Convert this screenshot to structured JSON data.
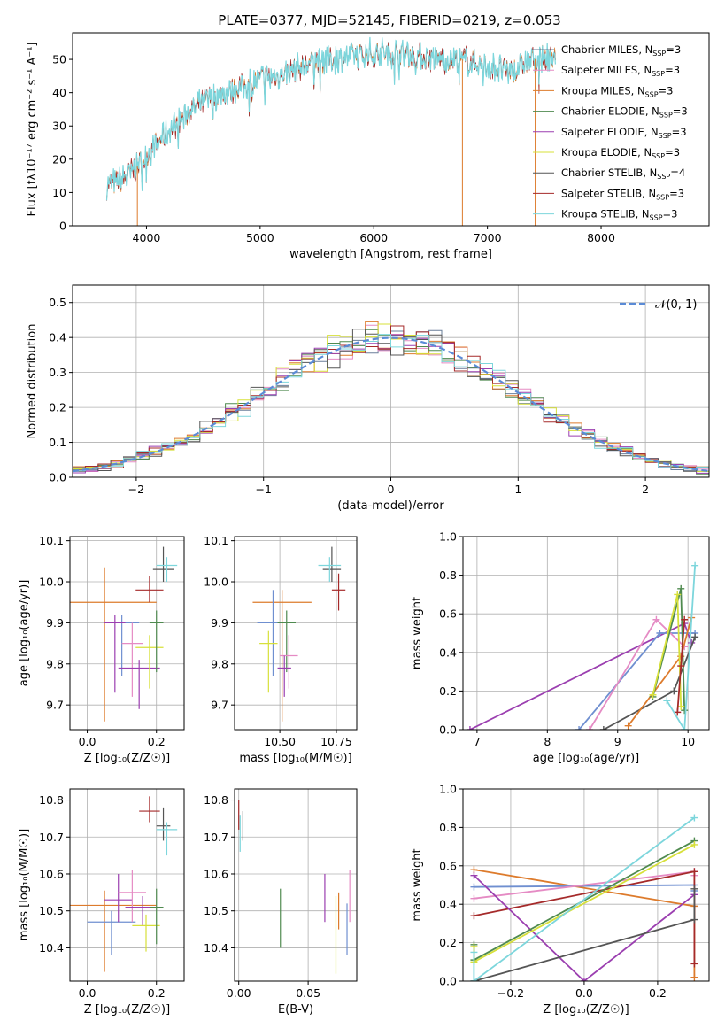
{
  "figure": {
    "title": "PLATE=0377, MJD=52145, FIBERID=0219, z=0.053"
  },
  "colors": {
    "chabrier_miles": "#6a7f9a",
    "salpeter_miles": "#e58bc4",
    "kroupa_miles": "#dd7b2c",
    "chabrier_elodie": "#4f8a4f",
    "salpeter_elodie": "#9b3fb0",
    "kroupa_elodie": "#d7e03a",
    "chabrier_stelib": "#555555",
    "salpeter_stelib": "#a52a2a",
    "kroupa_stelib": "#7dd6dc",
    "blue_line": "#6f8fd0",
    "normal_dash": "#5b8bd6"
  },
  "chart_data": [
    {
      "id": "spectrum",
      "type": "line",
      "xlabel": "wavelength [Angstrom, rest frame]",
      "ylabel": "Flux [fλ10⁻¹⁷ erg cm⁻² s⁻¹ A⁻¹]",
      "xlim": [
        3350,
        8950
      ],
      "ylim": [
        0,
        58
      ],
      "xticks": [
        "4000",
        "5000",
        "6000",
        "7000",
        "8000"
      ],
      "yticks": [
        "0",
        "10",
        "20",
        "30",
        "40",
        "50"
      ],
      "grid": false,
      "legend_placement": "top-right",
      "legend": [
        "Chabrier MILES, N_SSP=3",
        "Salpeter MILES, N_SSP=3",
        "Kroupa MILES, N_SSP=3",
        "Chabrier ELODIE, N_SSP=3",
        "Salpeter ELODIE, N_SSP=3",
        "Kroupa ELODIE, N_SSP=3",
        "Chabrier STELIB, N_SSP=4",
        "Salpeter STELIB, N_SSP=3",
        "Kroupa STELIB, N_SSP=3"
      ],
      "continuum": [
        [
          3650,
          12
        ],
        [
          3800,
          14
        ],
        [
          3950,
          19
        ],
        [
          4100,
          25
        ],
        [
          4250,
          30
        ],
        [
          4400,
          35
        ],
        [
          4550,
          38
        ],
        [
          4700,
          40
        ],
        [
          4850,
          42
        ],
        [
          5000,
          44
        ],
        [
          5150,
          45
        ],
        [
          5300,
          47
        ],
        [
          5450,
          49
        ],
        [
          5600,
          50
        ],
        [
          5800,
          51
        ],
        [
          6000,
          52
        ],
        [
          6200,
          52
        ],
        [
          6400,
          51
        ],
        [
          6600,
          50
        ],
        [
          6800,
          50
        ],
        [
          7000,
          48
        ],
        [
          7200,
          46
        ],
        [
          7400,
          50
        ],
        [
          7600,
          51
        ]
      ],
      "drops": [
        [
          3920,
          0
        ],
        [
          6780,
          0
        ],
        [
          7420,
          0
        ]
      ]
    },
    {
      "id": "residuals",
      "type": "area",
      "xlabel": "(data-model)/error",
      "ylabel": "Normed distribution",
      "xlim": [
        -2.5,
        2.5
      ],
      "ylim": [
        0,
        0.55
      ],
      "xticks": [
        "−2",
        "−1",
        "0",
        "1",
        "2"
      ],
      "yticks": [
        "0.0",
        "0.1",
        "0.2",
        "0.3",
        "0.4",
        "0.5"
      ],
      "grid": true,
      "legend_placement": "top-right",
      "legend": [
        "𝒩(0, 1)"
      ],
      "bin_width": 0.1
    },
    {
      "id": "age_vs_z",
      "type": "scatter",
      "xlabel": "Z [log₁₀(Z/Z☉)]",
      "ylabel": "age  [log₁₀(age/yr)]",
      "xlim": [
        -0.05,
        0.28
      ],
      "ylim": [
        9.64,
        10.11
      ],
      "xticks": [
        "0.0",
        "0.2"
      ],
      "yticks": [
        "9.7",
        "9.8",
        "9.9",
        "10.0",
        "10.1"
      ],
      "grid": true,
      "points": [
        {
          "x": 0.05,
          "y": 9.95,
          "dx": 0.15,
          "dy": 0.04,
          "dyu": 0.085,
          "dyd": 0.29,
          "c": "kroupa_miles"
        },
        {
          "x": 0.1,
          "y": 9.9,
          "dx": 0.05,
          "dyu": 0.02,
          "dyd": 0.13,
          "c": "blue_line"
        },
        {
          "x": 0.08,
          "y": 9.9,
          "dx": 0.03,
          "dyu": 0.02,
          "dyd": 0.17,
          "c": "salpeter_elodie"
        },
        {
          "x": 0.13,
          "y": 9.85,
          "dx": 0.03,
          "dyu": 0.05,
          "dyd": 0.13,
          "c": "salpeter_miles"
        },
        {
          "x": 0.15,
          "y": 9.79,
          "dx": 0.06,
          "dyu": 0.02,
          "dyd": 0.1,
          "c": "salpeter_elodie"
        },
        {
          "x": 0.18,
          "y": 9.84,
          "dx": 0.04,
          "dyu": 0.03,
          "dyd": 0.1,
          "c": "kroupa_elodie"
        },
        {
          "x": 0.2,
          "y": 9.9,
          "dx": 0.02,
          "dyu": 0.03,
          "dyd": 0.12,
          "c": "chabrier_elodie"
        },
        {
          "x": 0.18,
          "y": 9.98,
          "dx": 0.04,
          "dyu": 0.035,
          "dyd": 0.03,
          "c": "salpeter_stelib"
        },
        {
          "x": 0.22,
          "y": 10.03,
          "dx": 0.03,
          "dyu": 0.055,
          "dyd": 0.03,
          "c": "chabrier_stelib"
        },
        {
          "x": 0.23,
          "y": 10.04,
          "dx": 0.03,
          "dyu": 0.02,
          "dyd": 0.04,
          "c": "kroupa_stelib"
        }
      ]
    },
    {
      "id": "age_vs_mass",
      "type": "scatter",
      "xlabel": "mass [log₁₀(M/M☉)]",
      "ylabel": "",
      "xlim": [
        10.3,
        10.84
      ],
      "ylim": [
        9.64,
        10.11
      ],
      "xticks": [
        "10.50",
        "10.75"
      ],
      "yticks": [
        "9.7",
        "9.8",
        "9.9",
        "10.0",
        "10.1"
      ],
      "grid": true,
      "points": [
        {
          "x": 10.51,
          "y": 9.95,
          "dx": 0.13,
          "dyu": 0.03,
          "dyd": 0.29,
          "c": "kroupa_miles"
        },
        {
          "x": 10.47,
          "y": 9.9,
          "dx": 0.07,
          "dyu": 0.08,
          "dyd": 0.13,
          "c": "blue_line"
        },
        {
          "x": 10.53,
          "y": 9.9,
          "dx": 0.04,
          "dyu": 0.03,
          "dyd": 0.12,
          "c": "chabrier_elodie"
        },
        {
          "x": 10.54,
          "y": 9.82,
          "dx": 0.04,
          "dyu": 0.05,
          "dyd": 0.08,
          "c": "salpeter_miles"
        },
        {
          "x": 10.45,
          "y": 9.85,
          "dx": 0.04,
          "dyu": 0.03,
          "dyd": 0.12,
          "c": "kroupa_elodie"
        },
        {
          "x": 10.52,
          "y": 9.79,
          "dx": 0.03,
          "dyu": 0.03,
          "dyd": 0.07,
          "c": "salpeter_elodie"
        },
        {
          "x": 10.73,
          "y": 10.03,
          "dx": 0.04,
          "dyu": 0.055,
          "dyd": 0.03,
          "c": "chabrier_stelib"
        },
        {
          "x": 10.76,
          "y": 9.98,
          "dx": 0.03,
          "dyu": 0.04,
          "dyd": 0.05,
          "c": "salpeter_stelib"
        },
        {
          "x": 10.72,
          "y": 10.04,
          "dx": 0.05,
          "dyu": 0.02,
          "dyd": 0.04,
          "c": "kroupa_stelib"
        }
      ]
    },
    {
      "id": "massweight_vs_age",
      "type": "line",
      "xlabel": "age  [log₁₀(age/yr)]",
      "ylabel": "mass weight",
      "xlim": [
        6.8,
        10.3
      ],
      "ylim": [
        0.0,
        1.0
      ],
      "xticks": [
        "7",
        "8",
        "9",
        "10"
      ],
      "yticks": [
        "0.0",
        "0.2",
        "0.4",
        "0.6",
        "0.8",
        "1.0"
      ],
      "grid": true,
      "series": [
        {
          "c": "salpeter_elodie",
          "x": [
            6.9,
            9.95,
            10.05
          ],
          "y": [
            0.0,
            0.55,
            0.45
          ]
        },
        {
          "c": "blue_line",
          "x": [
            8.45,
            9.6,
            10.1
          ],
          "y": [
            0.0,
            0.5,
            0.5
          ]
        },
        {
          "c": "salpeter_miles",
          "x": [
            8.6,
            9.55,
            9.95
          ],
          "y": [
            0.0,
            0.57,
            0.43
          ]
        },
        {
          "c": "chabrier_stelib",
          "x": [
            8.8,
            9.8,
            10.1
          ],
          "y": [
            0.0,
            0.2,
            0.48
          ]
        },
        {
          "c": "kroupa_miles",
          "x": [
            9.15,
            9.9,
            10.05
          ],
          "y": [
            0.02,
            0.38,
            0.58
          ]
        },
        {
          "c": "chabrier_elodie",
          "x": [
            9.5,
            9.9,
            9.95
          ],
          "y": [
            0.17,
            0.73,
            0.1
          ]
        },
        {
          "c": "kroupa_elodie",
          "x": [
            9.5,
            9.85,
            9.9
          ],
          "y": [
            0.18,
            0.7,
            0.12
          ]
        },
        {
          "c": "salpeter_stelib",
          "x": [
            9.85,
            9.9,
            9.95
          ],
          "y": [
            0.09,
            0.33,
            0.57
          ]
        },
        {
          "c": "kroupa_stelib",
          "x": [
            9.7,
            9.95,
            10.1
          ],
          "y": [
            0.15,
            0.0,
            0.85
          ]
        }
      ]
    },
    {
      "id": "mass_vs_z",
      "type": "scatter",
      "xlabel": "Z [log₁₀(Z/Z☉)]",
      "ylabel": "mass [log₁₀(M/M☉)]",
      "xlim": [
        -0.05,
        0.28
      ],
      "ylim": [
        10.31,
        10.83
      ],
      "xticks": [
        "0.0",
        "0.2"
      ],
      "yticks": [
        "10.4",
        "10.5",
        "10.6",
        "10.7",
        "10.8"
      ],
      "grid": true,
      "points": [
        {
          "x": 0.05,
          "y": 10.515,
          "dx": 0.15,
          "dy": 0.04,
          "dyu": 0.04,
          "dyd": 0.18,
          "c": "kroupa_miles"
        },
        {
          "x": 0.07,
          "y": 10.47,
          "dx": 0.07,
          "dyu": 0.03,
          "dyd": 0.09,
          "c": "blue_line"
        },
        {
          "x": 0.09,
          "y": 10.53,
          "dx": 0.04,
          "dyu": 0.07,
          "dyd": 0.06,
          "c": "salpeter_elodie"
        },
        {
          "x": 0.13,
          "y": 10.55,
          "dx": 0.04,
          "dyu": 0.06,
          "dyd": 0.08,
          "c": "salpeter_miles"
        },
        {
          "x": 0.16,
          "y": 10.51,
          "dx": 0.05,
          "dyu": 0.03,
          "dyd": 0.05,
          "c": "salpeter_elodie"
        },
        {
          "x": 0.17,
          "y": 10.46,
          "dx": 0.04,
          "dyu": 0.03,
          "dyd": 0.07,
          "c": "kroupa_elodie"
        },
        {
          "x": 0.2,
          "y": 10.51,
          "dx": 0.02,
          "dyu": 0.05,
          "dyd": 0.1,
          "c": "chabrier_elodie"
        },
        {
          "x": 0.18,
          "y": 10.77,
          "dx": 0.03,
          "dyu": 0.04,
          "dyd": 0.03,
          "c": "salpeter_stelib"
        },
        {
          "x": 0.22,
          "y": 10.73,
          "dx": 0.02,
          "dyu": 0.05,
          "dyd": 0.04,
          "c": "chabrier_stelib"
        },
        {
          "x": 0.23,
          "y": 10.72,
          "dx": 0.03,
          "dyu": 0.02,
          "dyd": 0.07,
          "c": "kroupa_stelib"
        }
      ]
    },
    {
      "id": "mass_vs_ebv",
      "type": "scatter",
      "xlabel": "E(B-V)",
      "ylabel": "",
      "xlim": [
        -0.003,
        0.085
      ],
      "ylim": [
        10.31,
        10.83
      ],
      "xticks": [
        "0.00",
        "0.05"
      ],
      "yticks": [
        "10.4",
        "10.5",
        "10.6",
        "10.7",
        "10.8"
      ],
      "grid": true,
      "points": [
        {
          "x": 0.0,
          "y": 10.76,
          "dyu": 0.04,
          "dyd": 0.04,
          "c": "salpeter_stelib"
        },
        {
          "x": 0.001,
          "y": 10.71,
          "dyu": 0.05,
          "dyd": 0.05,
          "c": "kroupa_stelib"
        },
        {
          "x": 0.003,
          "y": 10.73,
          "dyu": 0.04,
          "dyd": 0.04,
          "c": "chabrier_stelib"
        },
        {
          "x": 0.03,
          "y": 10.5,
          "dyu": 0.06,
          "dyd": 0.1,
          "c": "chabrier_elodie"
        },
        {
          "x": 0.062,
          "y": 10.53,
          "dyu": 0.07,
          "dyd": 0.06,
          "c": "salpeter_elodie"
        },
        {
          "x": 0.07,
          "y": 10.46,
          "dyu": 0.08,
          "dyd": 0.13,
          "c": "kroupa_elodie"
        },
        {
          "x": 0.072,
          "y": 10.5,
          "dyu": 0.05,
          "dyd": 0.05,
          "c": "kroupa_miles"
        },
        {
          "x": 0.078,
          "y": 10.47,
          "dyu": 0.05,
          "dyd": 0.09,
          "c": "blue_line"
        },
        {
          "x": 0.08,
          "y": 10.53,
          "dyu": 0.08,
          "dyd": 0.06,
          "c": "salpeter_miles"
        }
      ]
    },
    {
      "id": "massweight_vs_z",
      "type": "line",
      "xlabel": "Z [log₁₀(Z/Z☉)]",
      "ylabel": "mass weight",
      "xlim": [
        -0.33,
        0.34
      ],
      "ylim": [
        0.0,
        1.0
      ],
      "xticks": [
        "−0.2",
        "0.0",
        "0.2"
      ],
      "yticks": [
        "0.0",
        "0.2",
        "0.4",
        "0.6",
        "0.8",
        "1.0"
      ],
      "grid": true,
      "series": [
        {
          "c": "kroupa_miles",
          "x": [
            -0.3,
            0.3,
            0.3
          ],
          "y": [
            0.58,
            0.39,
            0.02
          ]
        },
        {
          "c": "blue_line",
          "x": [
            -0.3,
            0.3,
            0.3
          ],
          "y": [
            0.49,
            0.5,
            0.47
          ]
        },
        {
          "c": "salpeter_miles",
          "x": [
            -0.3,
            0.3,
            0.3
          ],
          "y": [
            0.43,
            0.57,
            0.55
          ]
        },
        {
          "c": "salpeter_stelib",
          "x": [
            -0.3,
            0.3,
            0.3
          ],
          "y": [
            0.34,
            0.57,
            0.09
          ]
        },
        {
          "c": "salpeter_elodie",
          "x": [
            -0.3,
            0.0,
            0.3
          ],
          "y": [
            0.55,
            0.0,
            0.45
          ]
        },
        {
          "c": "chabrier_stelib",
          "x": [
            -0.3,
            0.3,
            0.3
          ],
          "y": [
            0.0,
            0.32,
            0.48
          ]
        },
        {
          "c": "chabrier_elodie",
          "x": [
            -0.3,
            -0.3,
            0.3
          ],
          "y": [
            0.19,
            0.11,
            0.73
          ]
        },
        {
          "c": "kroupa_elodie",
          "x": [
            -0.3,
            -0.3,
            0.3
          ],
          "y": [
            0.18,
            0.1,
            0.71
          ]
        },
        {
          "c": "kroupa_stelib",
          "x": [
            -0.3,
            -0.3,
            0.3
          ],
          "y": [
            0.15,
            0.0,
            0.85
          ]
        }
      ]
    }
  ]
}
